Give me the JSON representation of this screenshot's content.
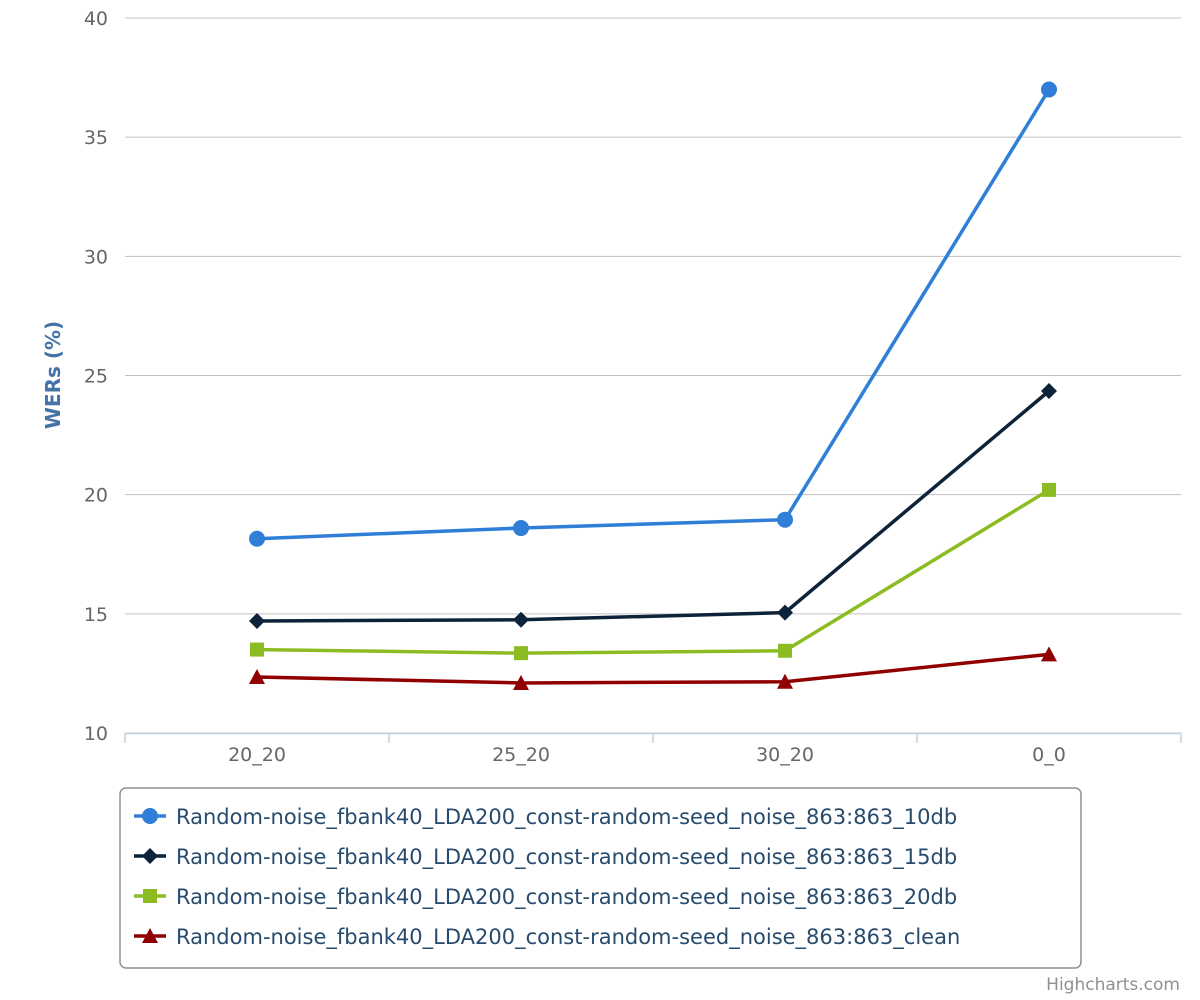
{
  "chart_data": {
    "type": "line",
    "categories": [
      "20_20",
      "25_20",
      "30_20",
      "0_0"
    ],
    "ylabel": "WERs (%)",
    "ylim": [
      10,
      40
    ],
    "yticks": [
      10,
      15,
      20,
      25,
      30,
      35,
      40
    ],
    "grid": true,
    "legend_position": "bottom",
    "series": [
      {
        "name": "Random-noise_fbank40_LDA200_const-random-seed_noise_863:863_10db",
        "values": [
          18.15,
          18.6,
          18.95,
          37.0
        ],
        "color": "#2f7ed8",
        "marker": "circle"
      },
      {
        "name": "Random-noise_fbank40_LDA200_const-random-seed_noise_863:863_15db",
        "values": [
          14.7,
          14.75,
          15.05,
          24.35
        ],
        "color": "#0d233a",
        "marker": "diamond"
      },
      {
        "name": "Random-noise_fbank40_LDA200_const-random-seed_noise_863:863_20db",
        "values": [
          13.5,
          13.35,
          13.45,
          20.2
        ],
        "color": "#8bbc21",
        "marker": "square"
      },
      {
        "name": "Random-noise_fbank40_LDA200_const-random-seed_noise_863:863_clean",
        "values": [
          12.35,
          12.1,
          12.15,
          13.3
        ],
        "color": "#910000",
        "marker": "triangle"
      }
    ]
  },
  "credits": "Highcharts.com"
}
